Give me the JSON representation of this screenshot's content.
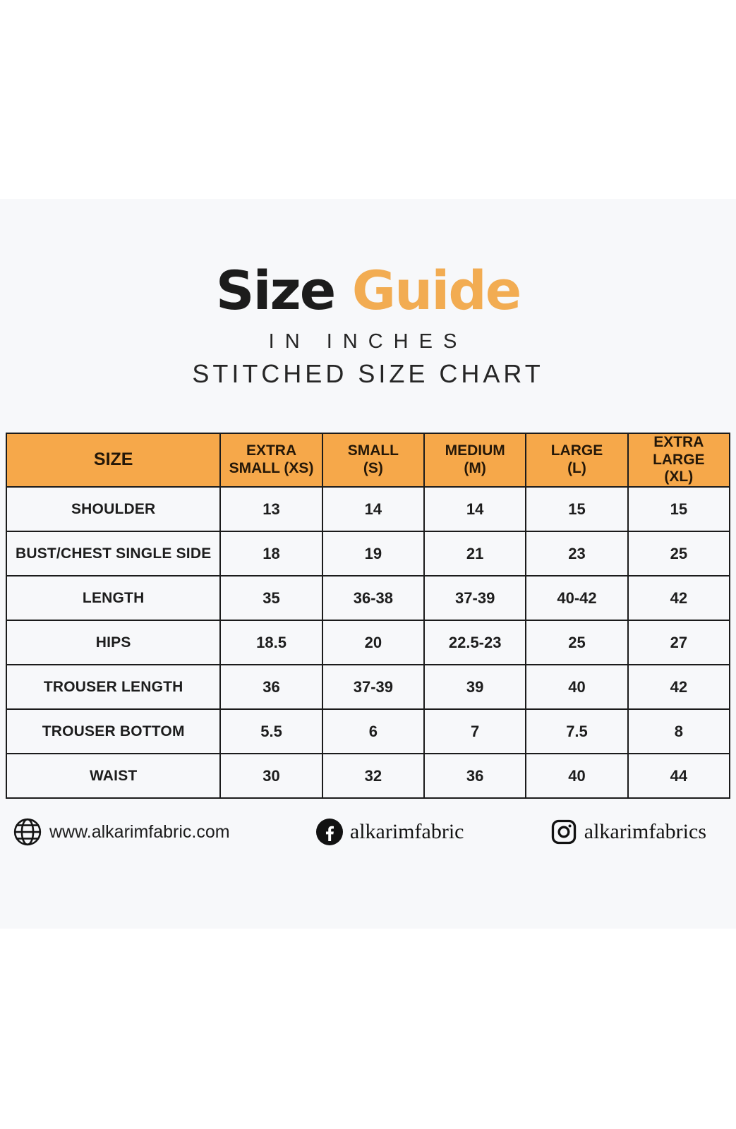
{
  "colors": {
    "accent_orange": "#F2AC52",
    "table_header_orange": "#F6A84A",
    "panel_background": "#F7F8FA",
    "text_black": "#1C1C1C"
  },
  "header": {
    "title_primary": "Size",
    "title_accent": "Guide",
    "subtitle_units": "IN INCHES",
    "subtitle_chart": "STITCHED SIZE CHART"
  },
  "chart_data": {
    "type": "table",
    "title": "Size Guide",
    "subtitle": "IN INCHES",
    "subtitle2": "STITCHED SIZE CHART",
    "columns": [
      "SIZE",
      "EXTRA\nSMALL (XS)",
      "SMALL\n(S)",
      "MEDIUM\n(M)",
      "LARGE\n(L)",
      "EXTRA LARGE\n(XL)"
    ],
    "rows": [
      [
        "SHOULDER",
        "13",
        "14",
        "14",
        "15",
        "15"
      ],
      [
        "BUST/CHEST SINGLE SIDE",
        "18",
        "19",
        "21",
        "23",
        "25"
      ],
      [
        "LENGTH",
        "35",
        "36-38",
        "37-39",
        "40-42",
        "42"
      ],
      [
        "HIPS",
        "18.5",
        "20",
        "22.5-23",
        "25",
        "27"
      ],
      [
        "TROUSER LENGTH",
        "36",
        "37-39",
        "39",
        "40",
        "42"
      ],
      [
        "TROUSER BOTTOM",
        "5.5",
        "6",
        "7",
        "7.5",
        "8"
      ],
      [
        "WAIST",
        "30",
        "32",
        "36",
        "40",
        "44"
      ]
    ]
  },
  "footer": {
    "website": "www.alkarimfabric.com",
    "facebook_handle": "alkarimfabric",
    "instagram_handle": "alkarimfabrics"
  }
}
